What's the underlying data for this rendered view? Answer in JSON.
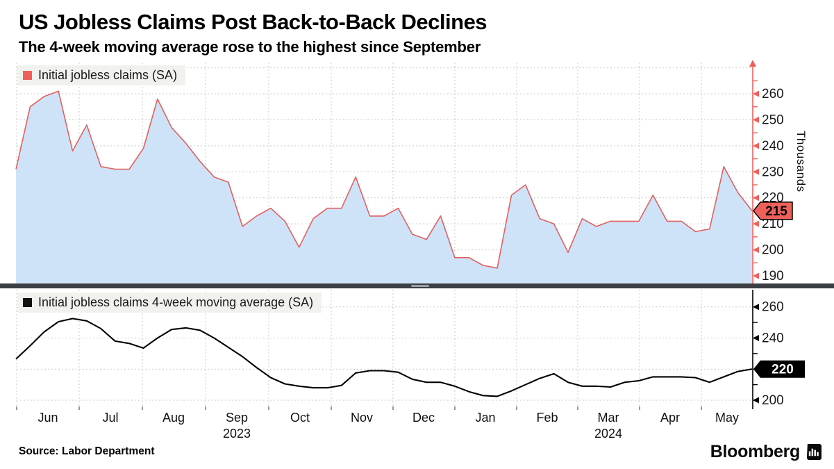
{
  "header": {
    "title": "US Jobless Claims Post Back-to-Back Declines",
    "subtitle": "The 4-week moving average rose to the highest since September"
  },
  "panels": {
    "top": {
      "legend": "Initial jobless claims (SA)",
      "axis_title": "Thousands",
      "badge": "215",
      "major_tick_labels": [
        "260",
        "250",
        "240",
        "230",
        "220",
        "210",
        "200",
        "190"
      ],
      "minor_ticks": [
        265,
        255,
        245,
        235,
        225,
        215,
        205,
        195
      ],
      "gridline_values": [
        270,
        260,
        250,
        240,
        230,
        220,
        210,
        200,
        190
      ]
    },
    "bottom": {
      "legend": "Initial jobless claims 4-week moving average (SA)",
      "badge": "220",
      "major_tick_labels": [
        "260",
        "240",
        "220",
        "200"
      ],
      "minor_ticks": [
        250,
        230,
        210
      ],
      "gridline_values": [
        260,
        240,
        220,
        200
      ]
    }
  },
  "x_axis": {
    "months": [
      "Jun",
      "Jul",
      "Aug",
      "Sep",
      "Oct",
      "Nov",
      "Dec",
      "Jan",
      "Feb",
      "Mar",
      "Apr",
      "May"
    ],
    "years": [
      {
        "label": "2023",
        "month_index": 3
      },
      {
        "label": "2024",
        "month_index": 9
      }
    ]
  },
  "footer": {
    "source": "Source: Labor Department",
    "brand": "Bloomberg",
    "brand_icon": "bloomberg-terminal-icon"
  },
  "colors": {
    "red": "#f0605a",
    "line_red": "#e2605f",
    "area_fill": "#cfe3f8",
    "black": "#000000",
    "grid": "#c9c9c9",
    "divider": "#3b3e42",
    "legend_bg": "#f1f1ee",
    "badge_top_text": "#000000",
    "badge_bottom_text": "#ffffff"
  },
  "chart_data": [
    {
      "type": "area",
      "name": "Initial jobless claims (SA)",
      "x_unit": "week",
      "x_range": "Jun 2023 - May 2024",
      "ylabel": "Thousands",
      "ylim": [
        186,
        272
      ],
      "y_ticks": [
        190,
        200,
        210,
        220,
        230,
        240,
        250,
        260
      ],
      "legend_position": "top-left",
      "grid": true,
      "last_value_label": 215,
      "values": [
        231,
        255,
        259,
        261,
        238,
        248,
        232,
        231,
        231,
        239,
        258,
        247,
        241,
        234,
        228,
        226,
        209,
        213,
        216,
        211,
        201,
        212,
        216,
        216,
        228,
        213,
        213,
        216,
        206,
        204,
        213,
        197,
        197,
        194,
        193,
        221,
        225,
        212,
        210,
        199,
        212,
        209,
        211,
        211,
        211,
        221,
        211,
        211,
        207,
        208,
        232,
        222,
        215
      ]
    },
    {
      "type": "line",
      "name": "Initial jobless claims 4-week moving average (SA)",
      "x_unit": "week",
      "x_range": "Jun 2023 - May 2024",
      "ylabel": "Thousands",
      "ylim": [
        196,
        266
      ],
      "y_ticks": [
        200,
        220,
        240,
        260
      ],
      "legend_position": "top-left",
      "grid": true,
      "last_value_label": 220,
      "values": [
        226.5,
        235,
        244,
        250.5,
        252.5,
        251,
        246,
        238,
        236.5,
        233.5,
        240,
        245.5,
        246.5,
        245,
        240,
        234,
        228,
        221,
        214.5,
        210.5,
        209,
        208,
        208,
        209.5,
        217.5,
        219,
        219,
        218,
        213.5,
        211.5,
        211.5,
        209,
        205.5,
        203,
        202.5,
        206,
        210,
        214,
        217,
        211.5,
        209,
        209,
        208.5,
        211.5,
        212.5,
        215,
        215,
        215,
        214.5,
        211.5,
        215,
        218.5,
        220
      ]
    }
  ]
}
